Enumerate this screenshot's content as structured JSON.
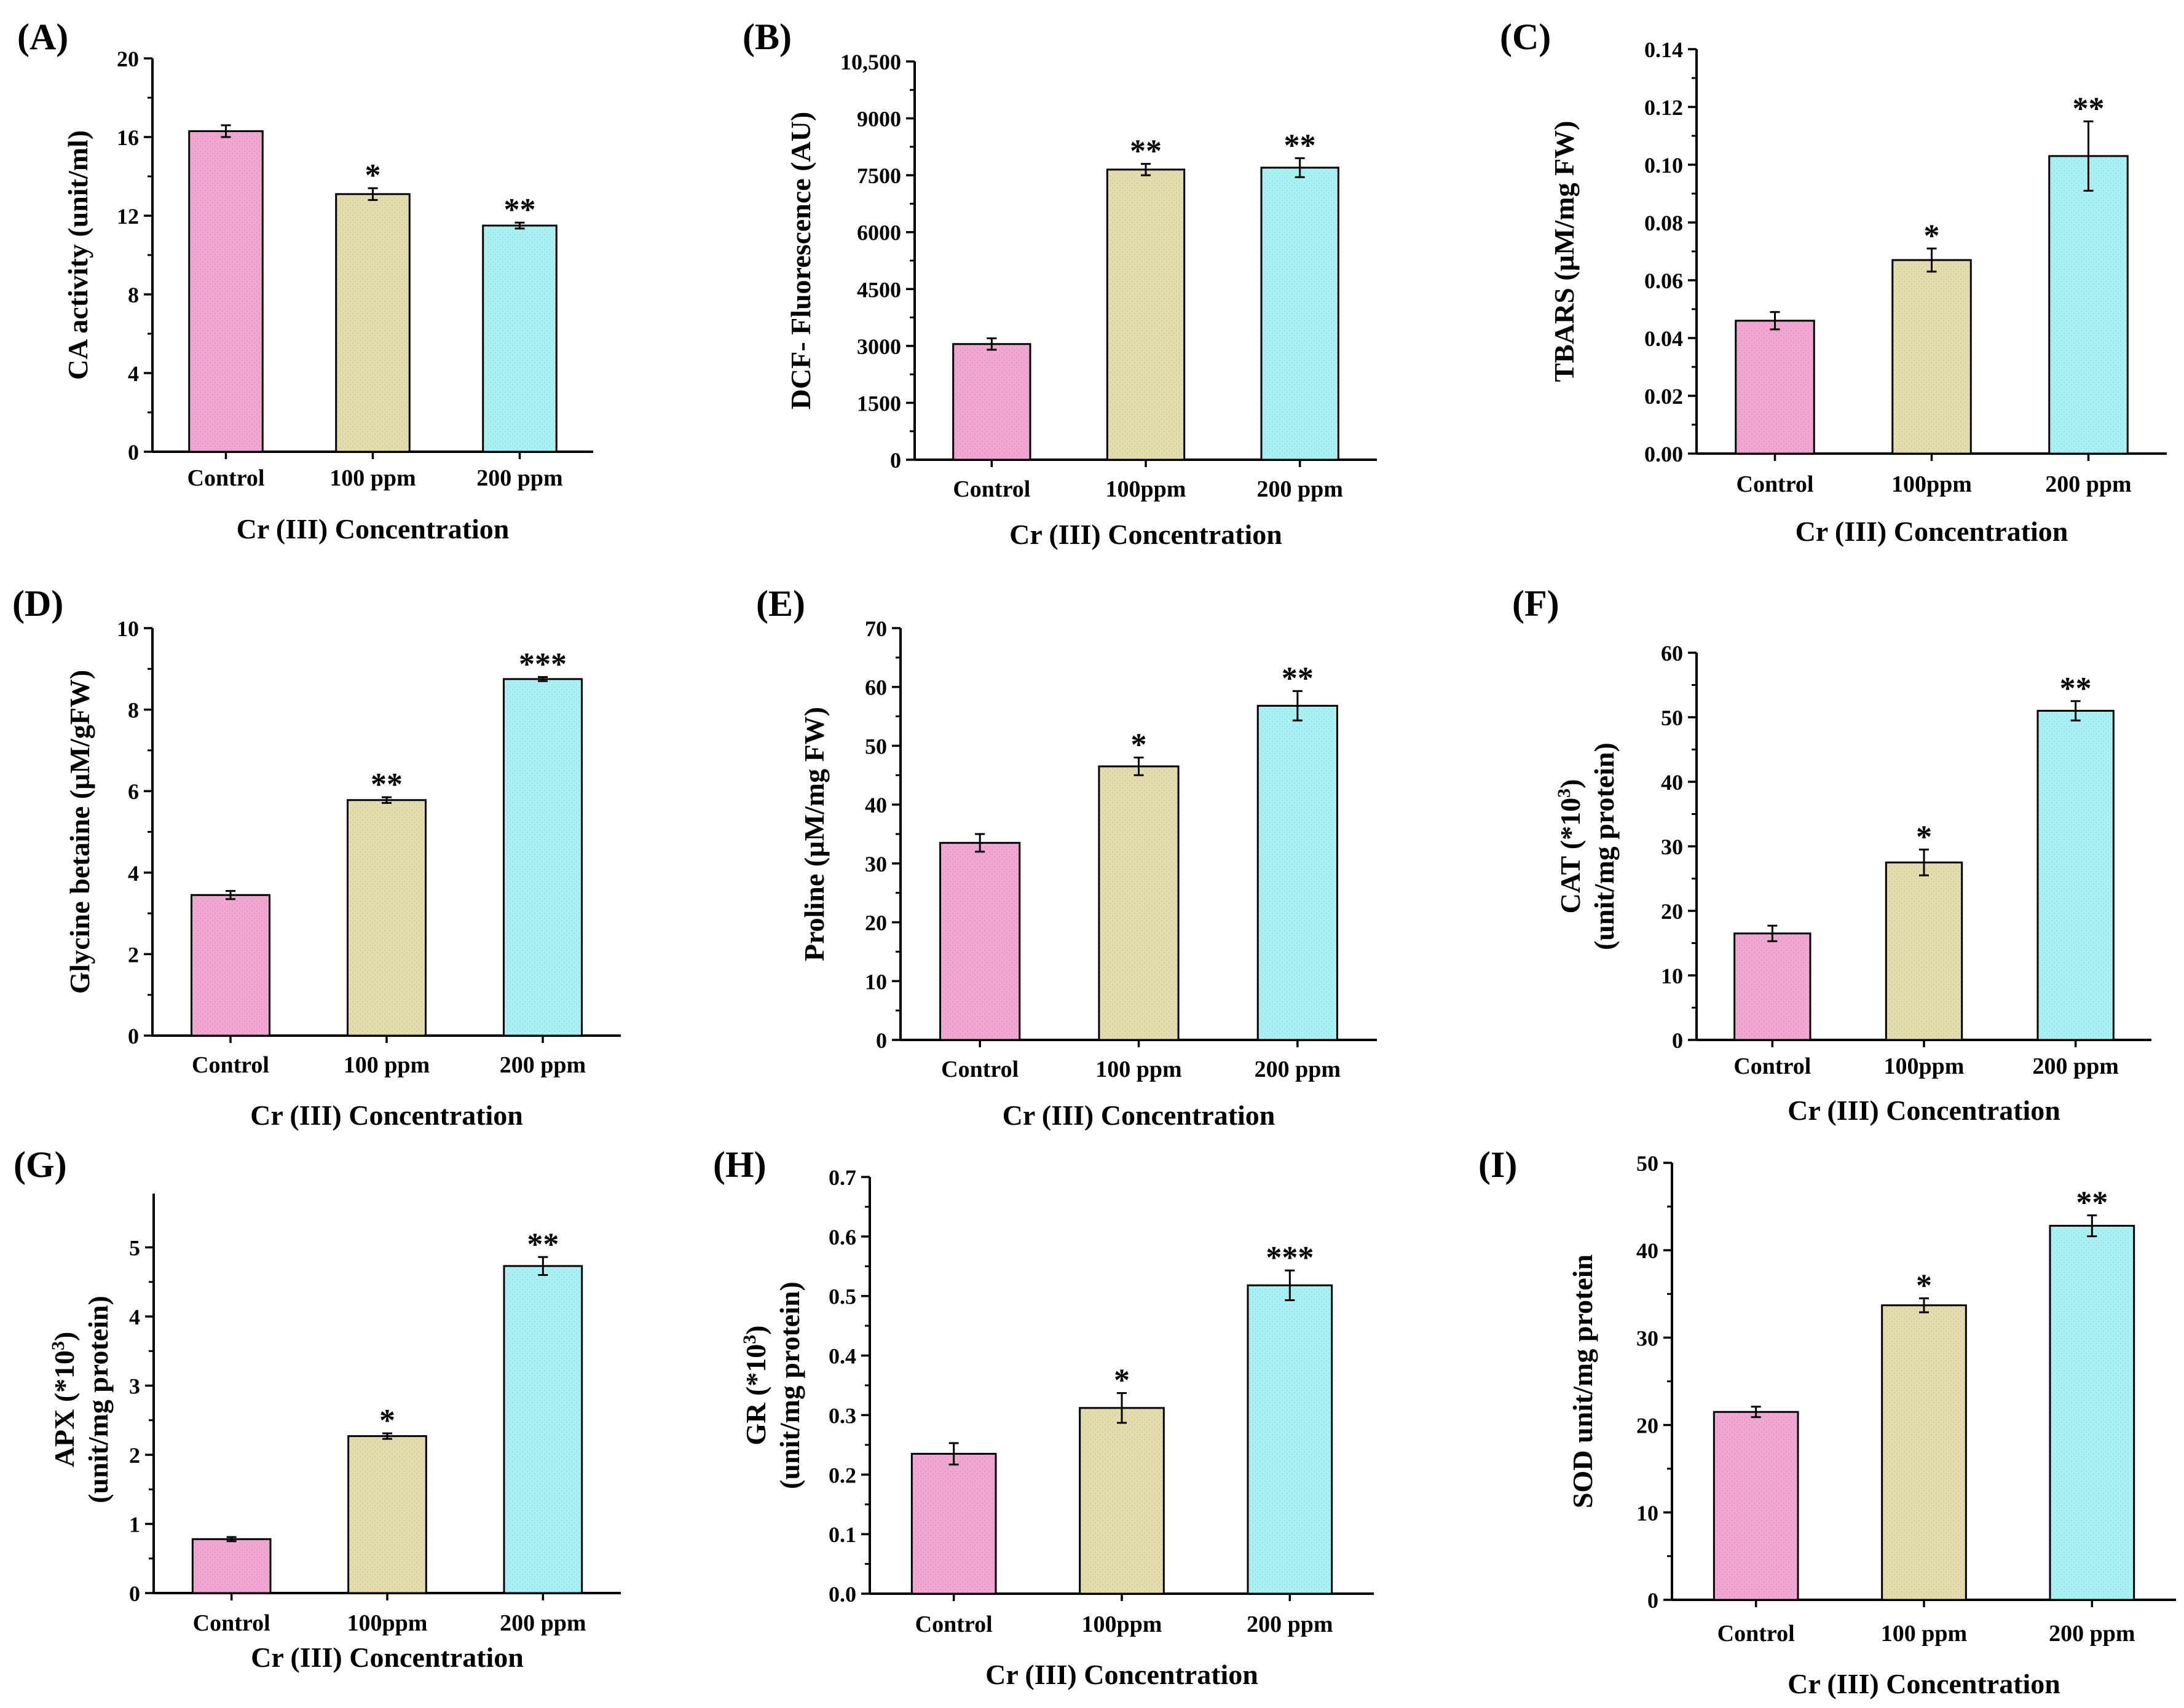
{
  "chart_data": [
    {
      "panel": "(A)",
      "type": "bar",
      "ylabel": "CA activity (unit/ml)",
      "xlabel": "Cr (III) Concentration",
      "categories": [
        "Control",
        "100 ppm",
        "200 ppm"
      ],
      "values": [
        16.3,
        13.1,
        11.5
      ],
      "errors": [
        0.3,
        0.3,
        0.15
      ],
      "significance": [
        "",
        "*",
        "**"
      ],
      "ylim": [
        0,
        20
      ],
      "yticks": [
        0,
        4,
        8,
        12,
        16,
        20
      ],
      "ytick_labels": [
        "0",
        "4",
        "8",
        "12",
        "16",
        "20"
      ]
    },
    {
      "panel": "(B)",
      "type": "bar",
      "ylabel": "DCF- Fluorescence (AU)",
      "xlabel": "Cr (III) Concentration",
      "categories": [
        "Control",
        "100ppm",
        "200 ppm"
      ],
      "values": [
        3050,
        7650,
        7700
      ],
      "errors": [
        150,
        150,
        250
      ],
      "significance": [
        "",
        "**",
        "**"
      ],
      "ylim": [
        0,
        10500
      ],
      "yticks": [
        0,
        1500,
        3000,
        4500,
        6000,
        7500,
        9000,
        10500
      ],
      "ytick_labels": [
        "0",
        "1500",
        "3000",
        "4500",
        "6000",
        "7500",
        "9000",
        "10,500"
      ]
    },
    {
      "panel": "(C)",
      "type": "bar",
      "ylabel": "TBARS (µM/mg FW)",
      "xlabel": "Cr (III) Concentration",
      "categories": [
        "Control",
        "100ppm",
        "200 ppm"
      ],
      "values": [
        0.046,
        0.067,
        0.103
      ],
      "errors": [
        0.003,
        0.004,
        0.012
      ],
      "significance": [
        "",
        "*",
        "**"
      ],
      "ylim": [
        0,
        0.14
      ],
      "yticks": [
        0,
        0.02,
        0.04,
        0.06,
        0.08,
        0.1,
        0.12,
        0.14
      ],
      "ytick_labels": [
        "0.00",
        "0.02",
        "0.04",
        "0.06",
        "0.08",
        "0.10",
        "0.12",
        "0.14"
      ]
    },
    {
      "panel": "(D)",
      "type": "bar",
      "ylabel": "Glycine betaine (µM/gFW)",
      "xlabel": "Cr (III) Concentration",
      "categories": [
        "Control",
        "100 ppm",
        "200 ppm"
      ],
      "values": [
        3.45,
        5.78,
        8.75
      ],
      "errors": [
        0.1,
        0.07,
        0.05
      ],
      "significance": [
        "",
        "**",
        "***"
      ],
      "ylim": [
        0,
        10
      ],
      "yticks": [
        0,
        2,
        4,
        6,
        8,
        10
      ],
      "ytick_labels": [
        "0",
        "2",
        "4",
        "6",
        "8",
        "10"
      ]
    },
    {
      "panel": "(E)",
      "type": "bar",
      "ylabel": "Proline (µM/mg FW)",
      "xlabel": "Cr (III) Concentration",
      "categories": [
        "Control",
        "100 ppm",
        "200 ppm"
      ],
      "values": [
        33.5,
        46.5,
        56.8
      ],
      "errors": [
        1.5,
        1.5,
        2.5
      ],
      "significance": [
        "",
        "*",
        "**"
      ],
      "ylim": [
        0,
        70
      ],
      "yticks": [
        0,
        10,
        20,
        30,
        40,
        50,
        60,
        70
      ],
      "ytick_labels": [
        "0",
        "10",
        "20",
        "30",
        "40",
        "50",
        "60",
        "70"
      ]
    },
    {
      "panel": "(F)",
      "type": "bar",
      "ylabel": "CAT (*10",
      "ylabel_sup": "3",
      "ylabel_tail": ")",
      "ylabel_line2": "(unit/mg protein)",
      "xlabel": "Cr (III) Concentration",
      "categories": [
        "Control",
        "100ppm",
        "200 ppm"
      ],
      "values": [
        16.5,
        27.5,
        51.0
      ],
      "errors": [
        1.2,
        2.0,
        1.5
      ],
      "significance": [
        "",
        "*",
        "**"
      ],
      "ylim": [
        0,
        60
      ],
      "yticks": [
        0,
        10,
        20,
        30,
        40,
        50,
        60
      ],
      "ytick_labels": [
        "0",
        "10",
        "20",
        "30",
        "40",
        "50",
        "60"
      ]
    },
    {
      "panel": "(G)",
      "type": "bar",
      "ylabel": "APX (*10",
      "ylabel_sup": "3",
      "ylabel_tail": ")",
      "ylabel_line2": "(unit/mg protein)",
      "xlabel": "Cr (III) Concentration",
      "categories": [
        "Control",
        "100ppm",
        "200 ppm"
      ],
      "values": [
        0.78,
        2.27,
        4.73
      ],
      "errors": [
        0.03,
        0.04,
        0.13
      ],
      "significance": [
        "",
        "*",
        "**"
      ],
      "ylim": [
        0,
        5.6
      ],
      "yticks": [
        0,
        1,
        2,
        3,
        4,
        5
      ],
      "ytick_labels": [
        "0",
        "1",
        "2",
        "3",
        "4",
        "5"
      ]
    },
    {
      "panel": "(H)",
      "type": "bar",
      "ylabel": "GR (*10",
      "ylabel_sup": "3",
      "ylabel_tail": ")",
      "ylabel_line2": "(unit/mg protein)",
      "xlabel": "Cr (III) Concentration",
      "categories": [
        "Control",
        "100ppm",
        "200 ppm"
      ],
      "values": [
        0.235,
        0.312,
        0.518
      ],
      "errors": [
        0.018,
        0.025,
        0.025
      ],
      "significance": [
        "",
        "*",
        "***"
      ],
      "ylim": [
        0,
        0.7
      ],
      "yticks": [
        0,
        0.1,
        0.2,
        0.3,
        0.4,
        0.5,
        0.6,
        0.7
      ],
      "ytick_labels": [
        "0.0",
        "0.1",
        "0.2",
        "0.3",
        "0.4",
        "0.5",
        "0.6",
        "0.7"
      ]
    },
    {
      "panel": "(I)",
      "type": "bar",
      "ylabel": "SOD unit/mg protein",
      "xlabel": "Cr (III) Concentration",
      "categories": [
        "Control",
        "100 ppm",
        "200 ppm"
      ],
      "values": [
        21.5,
        33.7,
        42.8
      ],
      "errors": [
        0.6,
        0.8,
        1.2
      ],
      "significance": [
        "",
        "*",
        "**"
      ],
      "ylim": [
        0,
        50
      ],
      "yticks": [
        0,
        10,
        20,
        30,
        40,
        50
      ],
      "ytick_labels": [
        "0",
        "10",
        "20",
        "30",
        "40",
        "50"
      ]
    }
  ],
  "colors": {
    "bar_fills": [
      "#f0a8d2",
      "#e3dcac",
      "#a8f2f3"
    ],
    "axis": "#000000"
  }
}
